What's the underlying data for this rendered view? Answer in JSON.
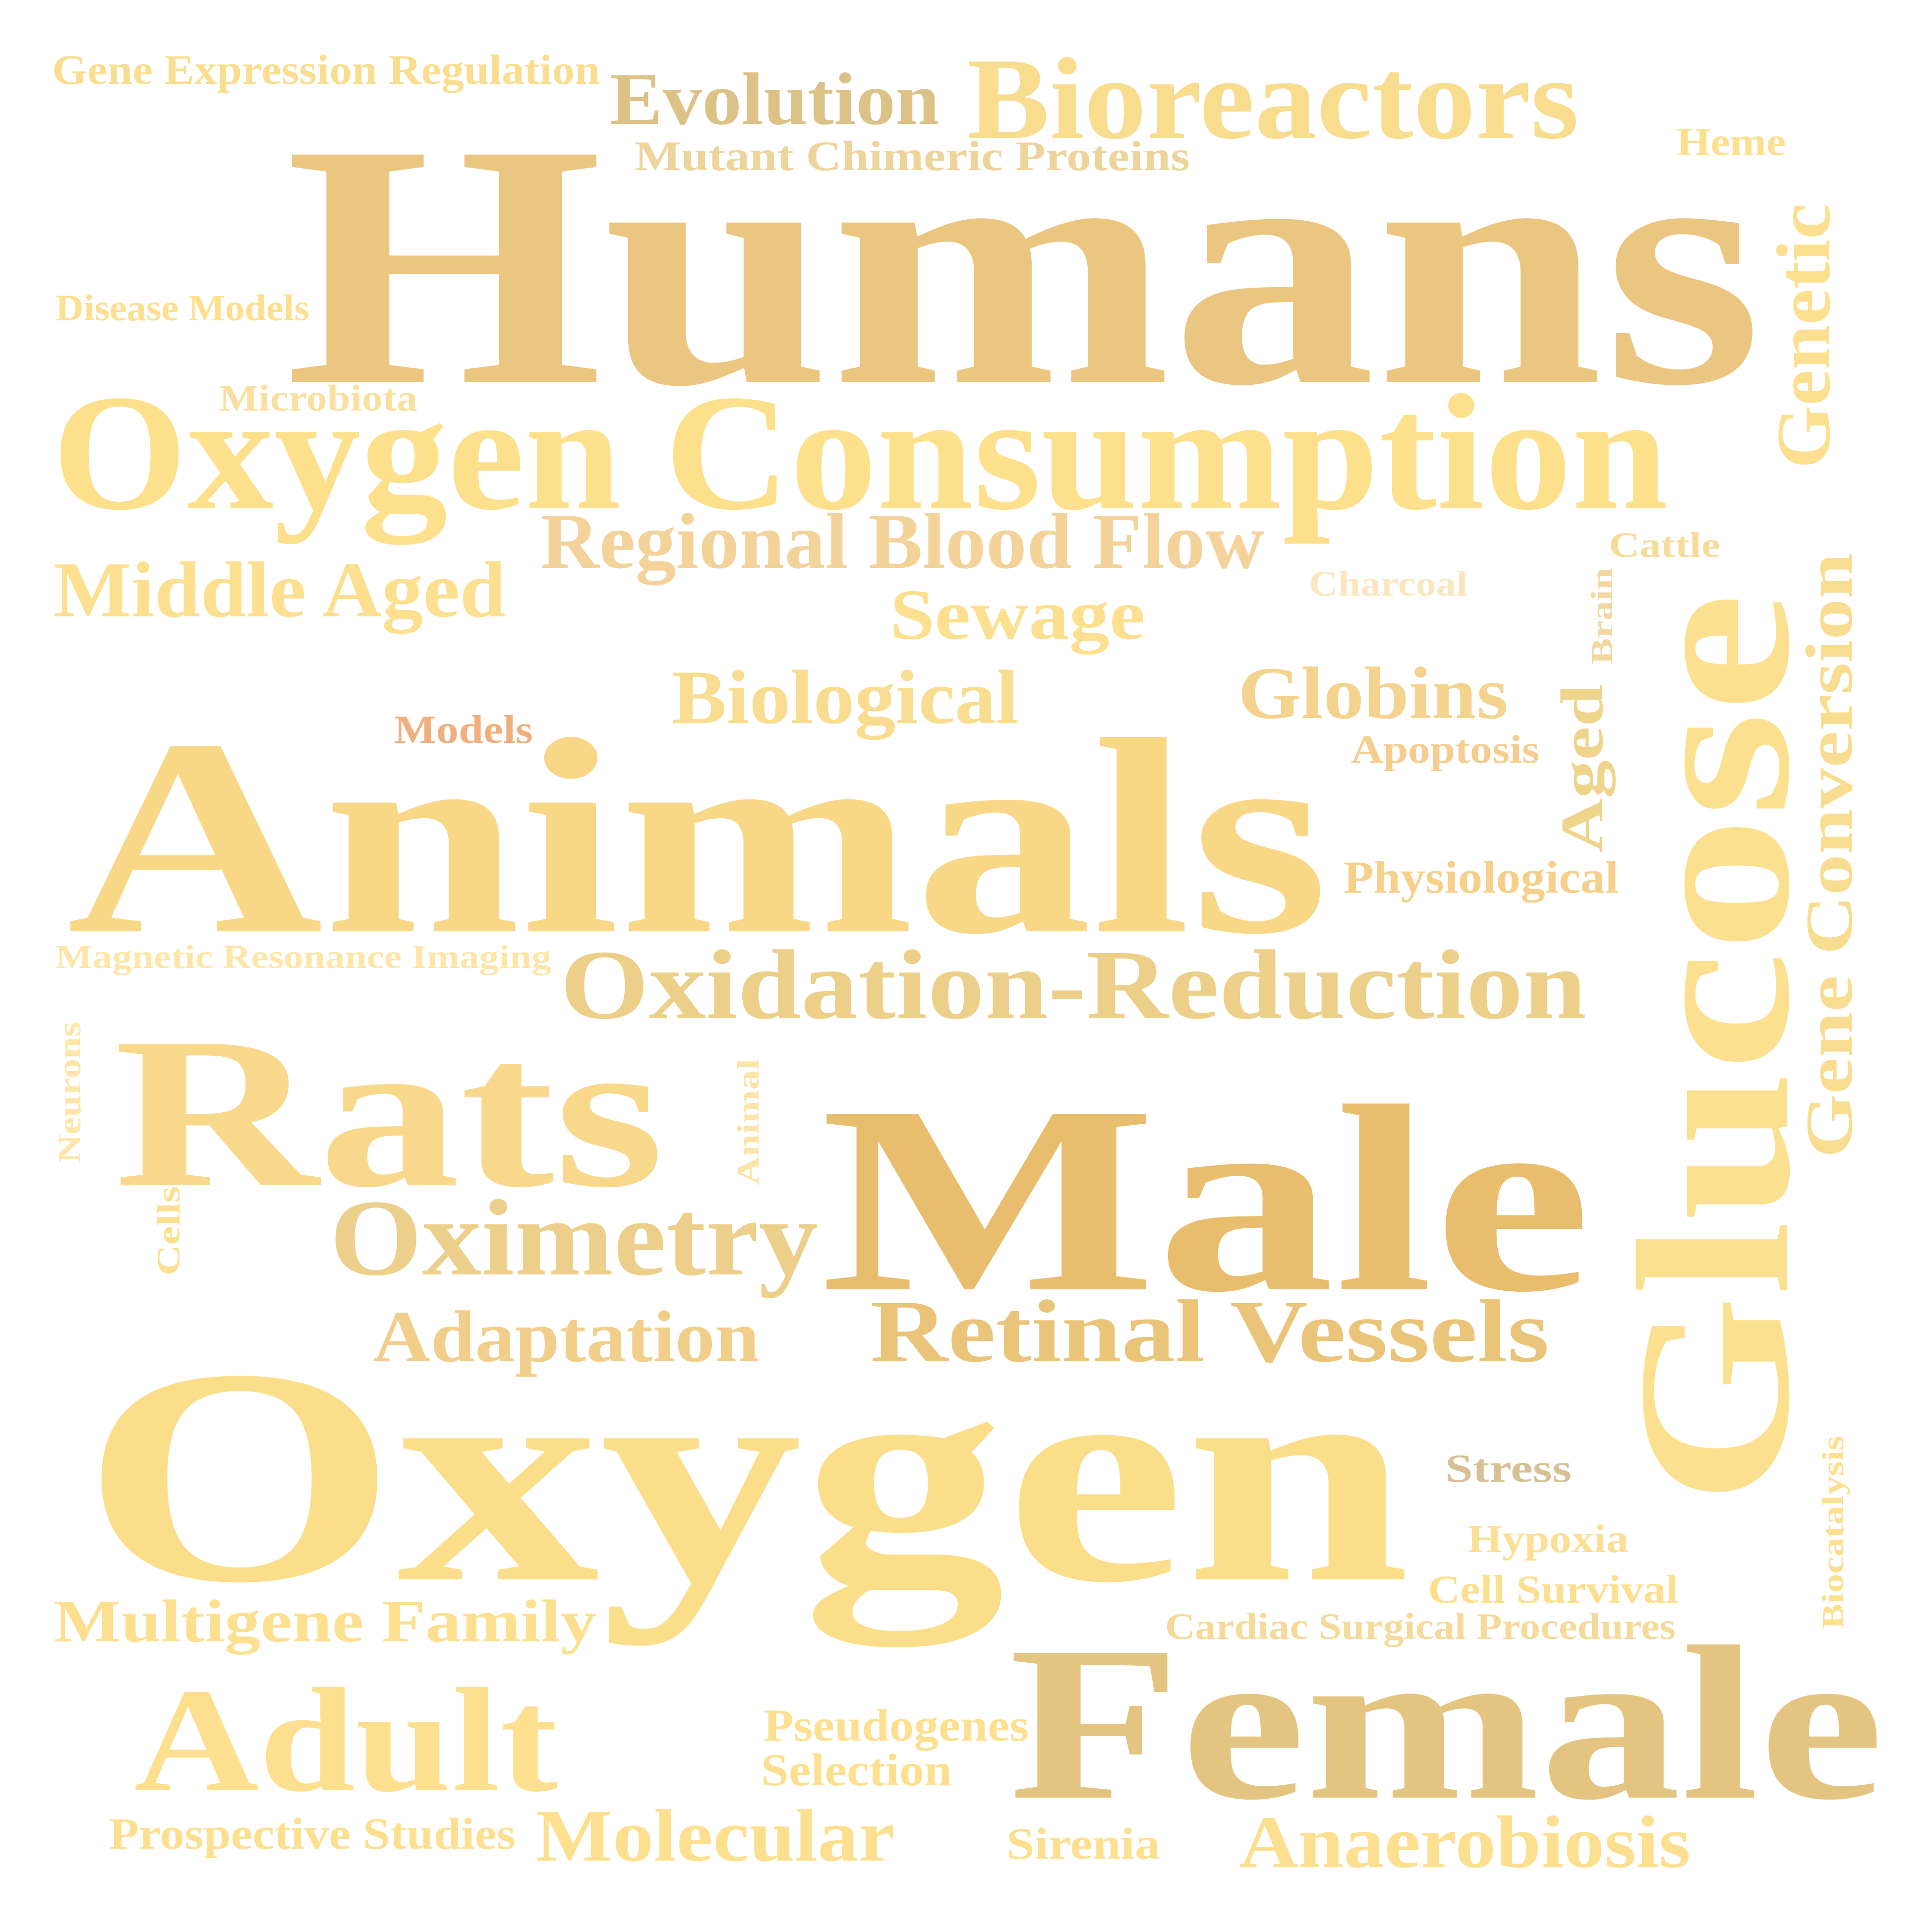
{
  "words": [
    {
      "text": "Gene Expression Regulation",
      "color": "#f9de8f"
    },
    {
      "text": "Evolution",
      "color": "#dcc287"
    },
    {
      "text": "Bioreactors",
      "color": "#f8dd8f"
    },
    {
      "text": "Mutant Chimeric Proteins",
      "color": "#ecd49a"
    },
    {
      "text": "Heme",
      "color": "#fde08f"
    },
    {
      "text": "Humans",
      "color": "#eac680"
    },
    {
      "text": "Genetic",
      "color": "#fde08f"
    },
    {
      "text": "Disease Models",
      "color": "#fde08f"
    },
    {
      "text": "Microbiota",
      "color": "#f9e0a0"
    },
    {
      "text": "Oxygen Consumption",
      "color": "#fde08b"
    },
    {
      "text": "Regional Blood Flow",
      "color": "#f3d39a"
    },
    {
      "text": "Cattle",
      "color": "#f6dc9a"
    },
    {
      "text": "Middle Aged",
      "color": "#fde08f"
    },
    {
      "text": "Charcoal",
      "color": "#fbe7bf"
    },
    {
      "text": "Sewage",
      "color": "#fde08f"
    },
    {
      "text": "Brain",
      "color": "#f2d7a0"
    },
    {
      "text": "Glucose",
      "color": "#fbe08f"
    },
    {
      "text": "Gene Conversion",
      "color": "#f8dc8f"
    },
    {
      "text": "Biological",
      "color": "#f8dc8f"
    },
    {
      "text": "Globins",
      "color": "#f3d38e"
    },
    {
      "text": "Models",
      "color": "#f0b07e"
    },
    {
      "text": "Apoptosis",
      "color": "#f6cd8e"
    },
    {
      "text": "Aged",
      "color": "#efd48b"
    },
    {
      "text": "Animals",
      "color": "#f8d887"
    },
    {
      "text": "Physiological",
      "color": "#f6d08b"
    },
    {
      "text": "Magnetic Resonance Imaging",
      "color": "#fde6a8"
    },
    {
      "text": "Oxidation-Reduction",
      "color": "#eccf88"
    },
    {
      "text": "Neurons",
      "color": "#fde6a8"
    },
    {
      "text": "Rats",
      "color": "#f8d98c"
    },
    {
      "text": "Animal",
      "color": "#fbe4a8"
    },
    {
      "text": "Male",
      "color": "#e8bd6e"
    },
    {
      "text": "Cells",
      "color": "#fde08f"
    },
    {
      "text": "Oximetry",
      "color": "#eccf8b"
    },
    {
      "text": "Adaptation",
      "color": "#f1cf8a"
    },
    {
      "text": "Retinal Vessels",
      "color": "#e9c479"
    },
    {
      "text": "Oxygen",
      "color": "#fbde8a"
    },
    {
      "text": "Stress",
      "color": "#d7c096"
    },
    {
      "text": "Biocatalysis",
      "color": "#fde08f"
    },
    {
      "text": "Hypoxia",
      "color": "#fbdf94"
    },
    {
      "text": "Cell Survival",
      "color": "#fcdf8f"
    },
    {
      "text": "Multigene Family",
      "color": "#fde08f"
    },
    {
      "text": "Cardiac Surgical Procedures",
      "color": "#f6da9a"
    },
    {
      "text": "Female",
      "color": "#e3c581"
    },
    {
      "text": "Pseudogenes",
      "color": "#fde08f"
    },
    {
      "text": "Adult",
      "color": "#fde08f"
    },
    {
      "text": "Selection",
      "color": "#fde08f"
    },
    {
      "text": "Prospective Studies",
      "color": "#fde08f"
    },
    {
      "text": "Molecular",
      "color": "#fde08f"
    },
    {
      "text": "Sirenia",
      "color": "#fde08f"
    },
    {
      "text": "Anaerobiosis",
      "color": "#fcdf8f"
    }
  ]
}
